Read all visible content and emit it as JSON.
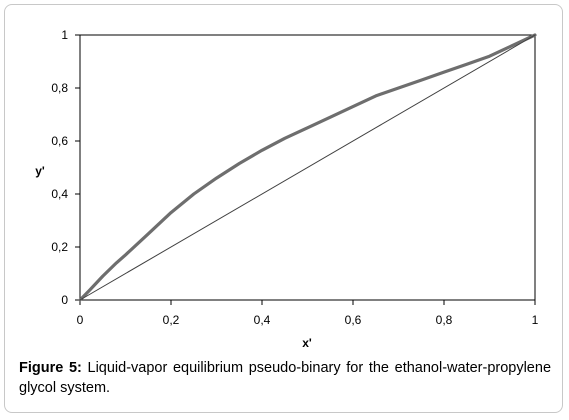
{
  "caption": {
    "label": "Figure 5:",
    "text": "Liquid-vapor equilibrium pseudo-binary for the ethanol-water-propylene glycol system."
  },
  "chart_data": {
    "type": "line",
    "title": "",
    "xlabel": "x'",
    "ylabel": "y'",
    "xlim": [
      0,
      1
    ],
    "ylim": [
      0,
      1
    ],
    "x_ticks": [
      0,
      0.2,
      0.4,
      0.6,
      0.8,
      1
    ],
    "y_ticks": [
      0,
      0.2,
      0.4,
      0.6,
      0.8,
      1
    ],
    "x_tick_labels": [
      "0",
      "0,2",
      "0,4",
      "0,6",
      "0,8",
      "1"
    ],
    "y_tick_labels": [
      "0",
      "0,2",
      "0,4",
      "0,6",
      "0,8",
      "1"
    ],
    "grid": false,
    "legend": "none",
    "series": [
      {
        "x": [
          0,
          0.02,
          0.05,
          0.08,
          0.1,
          0.15,
          0.2,
          0.25,
          0.3,
          0.35,
          0.4,
          0.45,
          0.5,
          0.55,
          0.6,
          0.65,
          0.7,
          0.75,
          0.8,
          0.85,
          0.9,
          0.95,
          1.0
        ],
        "y": [
          0,
          0.035,
          0.09,
          0.14,
          0.17,
          0.25,
          0.33,
          0.4,
          0.46,
          0.515,
          0.565,
          0.61,
          0.65,
          0.69,
          0.73,
          0.77,
          0.8,
          0.83,
          0.86,
          0.89,
          0.92,
          0.96,
          1.0
        ],
        "color": "#6e6e6e"
      },
      {
        "x": [
          0,
          1
        ],
        "y": [
          0,
          1
        ],
        "color": "#404040"
      }
    ]
  }
}
